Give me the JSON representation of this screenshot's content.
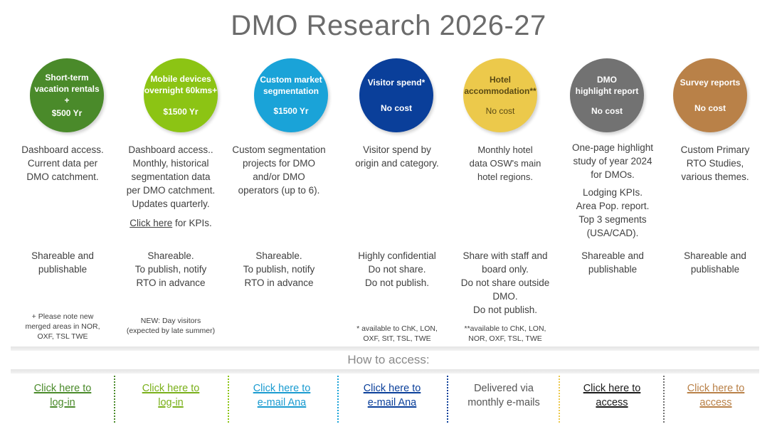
{
  "title": "DMO Research 2026-27",
  "columns": [
    {
      "circle_name": "Short-term\nvacation rentals\n+",
      "circle_price": "$500 Yr",
      "color": "#4a8a2a",
      "desc": [
        "Dashboard access.\nCurrent data per\nDMO catchment."
      ],
      "share": "Shareable and\npublishable",
      "note": "+ Please note new\nmerged areas in NOR,\nOXF, TSL TWE",
      "access": "Click here  to\nlog-in",
      "access_color": "#4a8a2a"
    },
    {
      "circle_name": "Mobile devices\novernight 60kms+",
      "circle_price": "$1500 Yr",
      "color": "#8cc414",
      "desc": [
        "Dashboard access..\nMonthly, historical\nsegmentation data\nper DMO catchment.\nUpdates quarterly."
      ],
      "link_text": "Click here",
      "link_suffix": " for KPIs.",
      "share": "Shareable.\nTo publish, notify\nRTO in advance",
      "note": "NEW: Day visitors\n(expected by late summer)",
      "access": "Click here  to\nlog-in",
      "access_color": "#7ab01a"
    },
    {
      "circle_name": "Custom market\nsegmentation",
      "circle_price": "$1500 Yr",
      "color": "#1aa3d8",
      "desc": [
        "Custom segmentation\nprojects for DMO\nand/or  DMO\noperators  (up to 6)."
      ],
      "share": "Shareable.\nTo publish, notify\nRTO in advance",
      "note": "",
      "access": "Click here  to\ne-mail Ana",
      "access_color": "#1a9bd0"
    },
    {
      "circle_name": "Visitor spend*",
      "circle_price": "No cost",
      "color": "#0a3f9a",
      "desc": [
        "Visitor spend by\norigin and category."
      ],
      "share": "Highly confidential\nDo not share.\nDo not publish.",
      "note": "* available to ChK, LON,\nOXF, StT, TSL, TWE",
      "access": "Click here  to\ne-mail Ana",
      "access_color": "#0a3f9a"
    },
    {
      "circle_name": "Hotel\naccommodation**",
      "circle_price": "No cost",
      "color": "#ecc94b",
      "desc": [
        "Monthly hotel\ndata OSW's main\nhotel regions."
      ],
      "share": "Share with staff  and\nboard only.\nDo not share outside\nDMO.\nDo not publish.",
      "note": "**available to ChK, LON,\nNOR, OXF, TSL, TWE",
      "access": "Delivered via\nmonthly e-mails",
      "access_color": "#555555"
    },
    {
      "circle_name": "DMO\nhighlight report",
      "circle_price": "No cost",
      "color": "#727272",
      "desc": [
        "One-page highlight\nstudy of year 2024\nfor DMOs.",
        "Lodging KPIs.\nArea Pop. report.\nTop 3 segments\n(USA/CAD)."
      ],
      "share": "Shareable and\npublishable",
      "note": "",
      "access": "Click here  to\naccess",
      "access_color": "#1a1a1a"
    },
    {
      "circle_name": "Survey reports",
      "circle_price": "No cost",
      "color": "#b98148",
      "desc": [
        "Custom Primary\nRTO Studies,\nvarious themes."
      ],
      "share": "Shareable and\npublishable",
      "note": "",
      "access": "Click here  to\naccess",
      "access_color": "#b98148"
    }
  ],
  "access_heading": "How to access:",
  "separator_colors": [
    "#4a8a2a",
    "#8cc414",
    "#1aa3d8",
    "#0a3f9a",
    "#ecc94b",
    "#727272"
  ]
}
